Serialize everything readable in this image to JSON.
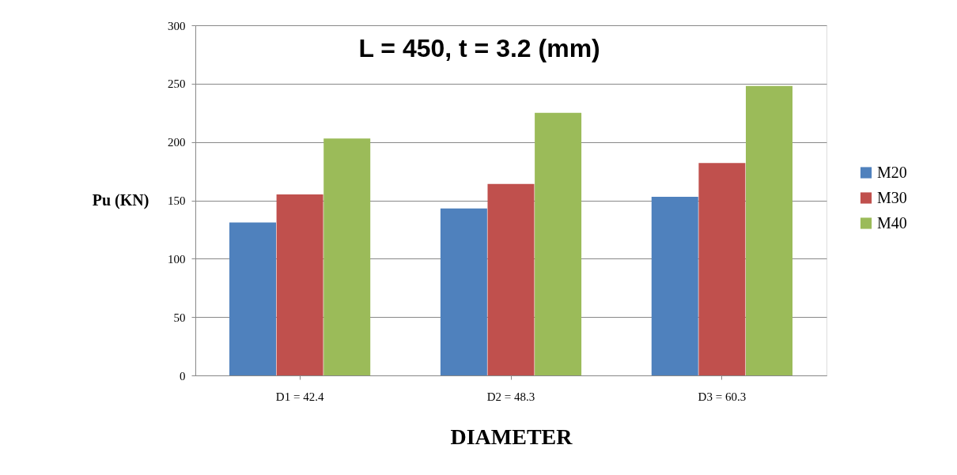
{
  "chart_data": {
    "type": "bar",
    "title": "L = 450, t = 3.2 (mm)",
    "xlabel": "DIAMETER",
    "ylabel": "Pu (KN)",
    "categories": [
      "D1 = 42.4",
      "D2 = 48.3",
      "D3 = 60.3"
    ],
    "series": [
      {
        "name": "M20",
        "color": "#4f81bd",
        "values": [
          131,
          143,
          153
        ]
      },
      {
        "name": "M30",
        "color": "#c0504d",
        "values": [
          155,
          164,
          182
        ]
      },
      {
        "name": "M40",
        "color": "#9bbb59",
        "values": [
          203,
          225,
          248
        ]
      }
    ],
    "ylim": [
      0,
      300
    ],
    "yticks": [
      0,
      50,
      100,
      150,
      200,
      250,
      300
    ],
    "grid": "y",
    "legend": "right"
  }
}
